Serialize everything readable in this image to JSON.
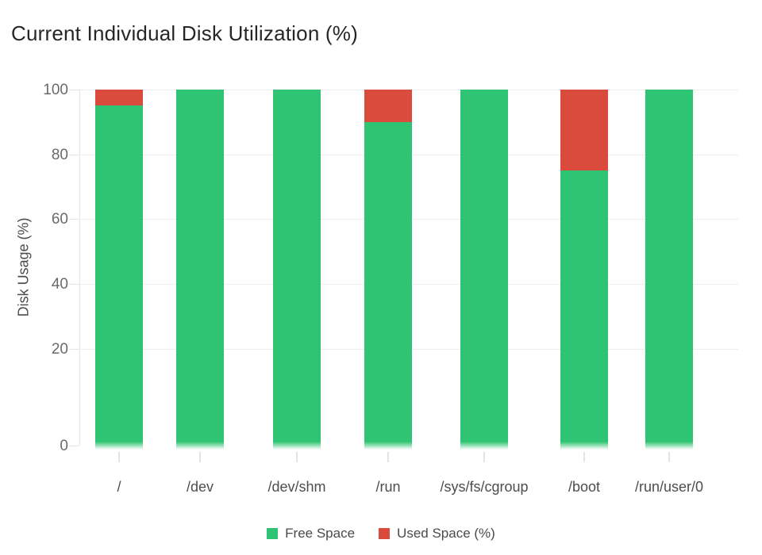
{
  "page": {
    "background": "#ffffff"
  },
  "chart_data": {
    "type": "bar",
    "stacked": true,
    "title": "Current Individual Disk Utilization (%)",
    "ylabel": "Disk Usage (%)",
    "xlabel": "",
    "ylim": [
      0,
      100
    ],
    "yticks": [
      0,
      20,
      40,
      60,
      80,
      100
    ],
    "grid": true,
    "legend_position": "bottom",
    "categories": [
      "/",
      "/dev",
      "/dev/shm",
      "/run",
      "/sys/fs/cgroup",
      "/boot",
      "/run/user/0"
    ],
    "series": [
      {
        "name": "Free Space",
        "color": "#2FC473",
        "values": [
          95,
          100,
          100,
          90,
          100,
          75,
          100
        ]
      },
      {
        "name": "Used Space (%)",
        "color": "#DA4B3D",
        "values": [
          5,
          0,
          0,
          10,
          0,
          25,
          0
        ]
      }
    ]
  }
}
